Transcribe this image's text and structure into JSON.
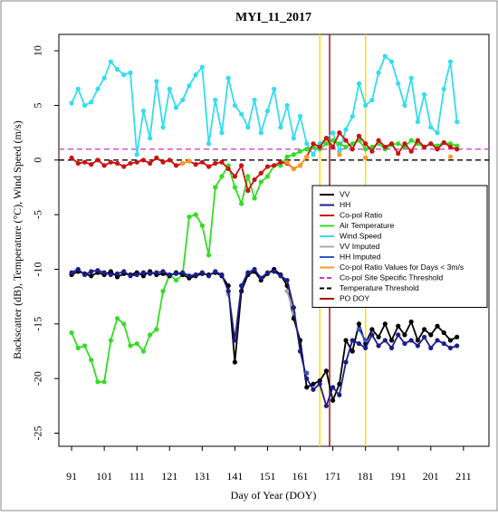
{
  "chart_data": {
    "type": "line",
    "title": "MYI_11_2017",
    "xlabel": "Day of Year (DOY)",
    "ylabel": "Backscatter (dB), Temperature (°C), Wind Speed (m/s)",
    "xlim": [
      87.1,
      218.8
    ],
    "xticks": [
      91,
      101,
      111,
      121,
      131,
      141,
      151,
      161,
      171,
      181,
      191,
      201,
      211
    ],
    "ylim": [
      -26.2,
      11.5
    ],
    "yticks": [
      10,
      5,
      0,
      -5,
      -10,
      -15,
      -20,
      -25
    ],
    "x": [
      91,
      93,
      95,
      97,
      99,
      101,
      103,
      105,
      107,
      109,
      111,
      113,
      115,
      117,
      119,
      121,
      123,
      125,
      127,
      129,
      131,
      133,
      135,
      137,
      139,
      141,
      143,
      145,
      147,
      149,
      151,
      153,
      155,
      157,
      159,
      161,
      163,
      165,
      167,
      169,
      171,
      173,
      175,
      177,
      179,
      181,
      183,
      185,
      187,
      189,
      191,
      193,
      195,
      197,
      199,
      201,
      203,
      205,
      207,
      209
    ],
    "series": [
      {
        "name": "VV",
        "color": "#000000",
        "values": [
          -10.5,
          -10.2,
          -10.4,
          -10.6,
          -10.3,
          -10.5,
          -10.2,
          -10.7,
          -10.4,
          -10.5,
          -10.3,
          -10.6,
          -10.2,
          -10.5,
          -10.4,
          -10.6,
          -10.3,
          -10.5,
          -10.8,
          -10.6,
          -10.4,
          -10.5,
          -10.3,
          -10.6,
          -11.5,
          -18.5,
          -12.0,
          -10.5,
          -10.2,
          -11.0,
          -10.4,
          -10.0,
          -10.5,
          -11.5,
          -14.5,
          -16.5,
          -20.8,
          -20.5,
          -20.2,
          -19.3,
          -22.0,
          -20.5,
          -16.5,
          -17.5,
          -15.0,
          -16.8,
          -15.5,
          -16.2,
          -15.0,
          -16.5,
          -15.2,
          -16.0,
          -14.8,
          -16.5,
          -15.5,
          -16.0,
          -15.2,
          -15.8,
          -16.5,
          -16.2
        ]
      },
      {
        "name": "HH",
        "color": "#1c1c8a",
        "values": [
          -10.3,
          -10.0,
          -10.5,
          -10.2,
          -10.1,
          -10.3,
          -10.5,
          -10.4,
          -10.2,
          -10.6,
          -10.5,
          -10.3,
          -10.4,
          -10.3,
          -10.2,
          -10.5,
          -10.4,
          -10.3,
          -10.6,
          -10.5,
          -10.3,
          -10.6,
          -10.2,
          -10.5,
          -12.0,
          -16.5,
          -11.5,
          -10.3,
          -10.0,
          -10.8,
          -10.3,
          -10.2,
          -10.6,
          -11.0,
          -13.5,
          -17.5,
          -20.0,
          -21.0,
          -20.5,
          -22.5,
          -20.8,
          -21.5,
          -18.5,
          -16.5,
          -16.8,
          -17.2,
          -16.0,
          -17.0,
          -16.5,
          -17.2,
          -16.0,
          -16.8,
          -16.5,
          -17.0,
          -16.2,
          -17.2,
          -16.5,
          -16.8,
          -17.2,
          -17.0
        ]
      },
      {
        "name": "Co-pol Ratio",
        "color": "#cc1111",
        "values": [
          0.2,
          -0.3,
          -0.2,
          -0.4,
          0,
          -0.5,
          -0.2,
          -0.3,
          -0.6,
          -0.3,
          -0.2,
          0,
          -0.3,
          0.2,
          -0.2,
          0,
          -0.5,
          -0.3,
          -0.1,
          -0.4,
          -0.2,
          -0.6,
          -0.3,
          -0.2,
          -0.8,
          -1.5,
          -0.5,
          -2.8,
          -1.8,
          -1.2,
          -0.6,
          -0.5,
          -0.2,
          -0.3,
          -0.8,
          -0.5,
          0.3,
          1.5,
          1.2,
          2.0,
          1.2,
          2.5,
          1.8,
          1.0,
          2.2,
          1.5,
          0.8,
          1.8,
          1.2,
          1.5,
          0.6,
          1.5,
          0.8,
          1.8,
          1.2,
          1.5,
          1.0,
          1.6,
          1.2,
          1.0
        ]
      },
      {
        "name": "Air Temperature",
        "color": "#33dd22",
        "values": [
          -15.8,
          -17.2,
          -17,
          -18.3,
          -20.3,
          -20.3,
          -16.5,
          -14.5,
          -15,
          -17,
          -16.8,
          -17.5,
          -16,
          -15.5,
          -12,
          -10.5,
          -11,
          -10.5,
          -5.2,
          -5,
          -6,
          -8.7,
          -2.5,
          -1.5,
          -0.5,
          -2.5,
          -4,
          -1.5,
          -3.5,
          -2,
          -1.5,
          -0.5,
          -0.5,
          0.3,
          0.5,
          0.8,
          1.0,
          1.2,
          1.0,
          1.5,
          1.8,
          1.5,
          1.2,
          1.5,
          1.8,
          1.0,
          1.2,
          1.5,
          1.0,
          1.4,
          1.5,
          1.2,
          1.8,
          1.5,
          1.2,
          1.5,
          1.3,
          1.6,
          1.5,
          1.3
        ]
      },
      {
        "name": "Wind Speed",
        "color": "#33ddee",
        "values": [
          5.2,
          6.5,
          5.0,
          5.3,
          6.5,
          7.5,
          9.0,
          8.3,
          7.8,
          8.0,
          0.5,
          4.5,
          2.0,
          7.2,
          3.0,
          6.5,
          4.8,
          5.5,
          6.8,
          7.8,
          8.5,
          1.5,
          5.5,
          2.5,
          7.5,
          5.0,
          4.2,
          3.0,
          5.5,
          2.5,
          4.5,
          6.5,
          3.0,
          5.0,
          2.0,
          4.0,
          1.5,
          0.5,
          1.5,
          2.0,
          2.5,
          0.8,
          2.8,
          4.0,
          7.0,
          5.0,
          5.5,
          8.0,
          9.5,
          9.0,
          7.0,
          5.0,
          7.5,
          3.5,
          6.0,
          3.0,
          2.5,
          6.5,
          9.0,
          3.5
        ]
      },
      {
        "name": "VV Imputed",
        "color": "#aaaaaa",
        "values": [
          null,
          null,
          null,
          null,
          null,
          null,
          null,
          null,
          null,
          null,
          null,
          null,
          null,
          null,
          null,
          null,
          null,
          null,
          null,
          null,
          null,
          null,
          null,
          null,
          -12.3,
          null,
          null,
          null,
          null,
          null,
          null,
          null,
          null,
          -12.0,
          -14.0,
          null,
          null,
          null,
          null,
          null,
          null,
          null,
          null,
          null,
          null,
          null,
          null,
          null,
          null,
          null,
          null,
          null,
          null,
          null,
          null,
          null,
          null,
          null,
          null,
          null
        ]
      },
      {
        "name": "HH Imputed",
        "color": "#3355cc",
        "values": [
          null,
          null,
          null,
          null,
          null,
          null,
          null,
          null,
          null,
          null,
          null,
          null,
          null,
          null,
          null,
          null,
          null,
          null,
          null,
          null,
          null,
          null,
          null,
          null,
          null,
          null,
          null,
          null,
          null,
          null,
          null,
          null,
          null,
          null,
          null,
          null,
          -19.5,
          null,
          null,
          null,
          null,
          null,
          null,
          null,
          -15.5,
          -16.5,
          null,
          null,
          null,
          null,
          null,
          null,
          null,
          null,
          null,
          null,
          null,
          null,
          null,
          null
        ]
      },
      {
        "name": "Co-pol Ratio Values for Days < 3m/s",
        "color": "#ff9922",
        "values": [
          null,
          null,
          null,
          null,
          null,
          null,
          null,
          null,
          null,
          null,
          null,
          null,
          null,
          null,
          null,
          null,
          null,
          -0.3,
          -0.1,
          null,
          null,
          null,
          null,
          null,
          null,
          null,
          null,
          null,
          null,
          null,
          null,
          null,
          null,
          -0.2,
          -0.8,
          -0.5,
          0.3,
          null,
          null,
          null,
          null,
          0.5,
          null,
          null,
          null,
          0.2,
          null,
          null,
          null,
          null,
          null,
          null,
          null,
          null,
          null,
          null,
          null,
          null,
          0.3,
          null
        ]
      }
    ],
    "hlines": [
      {
        "name": "Co-pol Site Specific Threshold",
        "value": 1,
        "color": "#cc33cc"
      },
      {
        "name": "Temperature Threshold",
        "value": 0,
        "color": "#000000"
      }
    ],
    "vlines": [
      {
        "value": 167,
        "color": "#ffdd00"
      },
      {
        "value": 181,
        "color": "#ffdd00"
      },
      {
        "name": "PO DOY",
        "value": 170,
        "color": "#aa1111"
      }
    ]
  }
}
